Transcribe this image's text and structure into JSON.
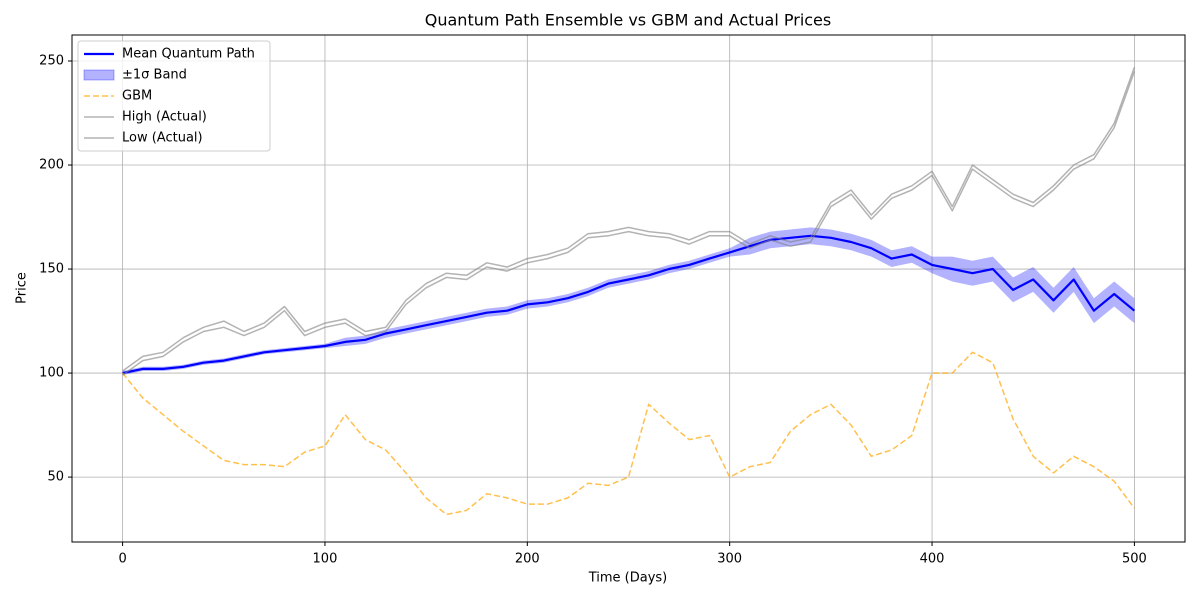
{
  "chart_data": {
    "type": "line",
    "title": "Quantum Path Ensemble vs GBM and Actual Prices",
    "xlabel": "Time (Days)",
    "ylabel": "Price",
    "x": [
      0,
      10,
      20,
      30,
      40,
      50,
      60,
      70,
      80,
      90,
      100,
      110,
      120,
      130,
      140,
      150,
      160,
      170,
      180,
      190,
      200,
      210,
      220,
      230,
      240,
      250,
      260,
      270,
      280,
      290,
      300,
      310,
      320,
      330,
      340,
      350,
      360,
      370,
      380,
      390,
      400,
      410,
      420,
      430,
      440,
      450,
      460,
      470,
      480,
      490,
      500
    ],
    "series": [
      {
        "name": "Mean Quantum Path",
        "color": "#0000ff",
        "opacity": 1,
        "width": 2.2,
        "values": [
          100,
          102,
          102,
          103,
          105,
          106,
          108,
          110,
          111,
          112,
          113,
          115,
          116,
          119,
          121,
          123,
          125,
          127,
          129,
          130,
          133,
          134,
          136,
          139,
          143,
          145,
          147,
          150,
          152,
          155,
          158,
          161,
          164,
          165,
          166,
          165,
          163,
          160,
          155,
          157,
          152,
          150,
          148,
          150,
          140,
          145,
          135,
          145,
          130,
          138,
          130
        ]
      },
      {
        "name": "±1σ Band",
        "color": "#0000ff",
        "opacity": 0.3,
        "upper": [
          101,
          103,
          103,
          104,
          106,
          107,
          109,
          111,
          112,
          113,
          114,
          117,
          118,
          121,
          123,
          125,
          127,
          129,
          131,
          132,
          135,
          136,
          138,
          141,
          145,
          147,
          149,
          152,
          154,
          157,
          160,
          165,
          168,
          169,
          170,
          169,
          167,
          164,
          159,
          161,
          156,
          156,
          154,
          156,
          146,
          151,
          141,
          151,
          136,
          144,
          136
        ],
        "lower": [
          99,
          101,
          101,
          102,
          104,
          105,
          107,
          109,
          110,
          111,
          112,
          113,
          114,
          117,
          119,
          121,
          123,
          125,
          127,
          128,
          131,
          132,
          134,
          137,
          141,
          143,
          145,
          148,
          150,
          153,
          156,
          157,
          160,
          161,
          162,
          161,
          159,
          156,
          151,
          153,
          148,
          144,
          142,
          144,
          134,
          139,
          129,
          139,
          124,
          132,
          124
        ]
      },
      {
        "name": "GBM",
        "color": "#ffa500",
        "opacity": 0.7,
        "width": 1.5,
        "dash": true,
        "values": [
          100,
          88,
          80,
          72,
          65,
          58,
          56,
          56,
          55,
          62,
          65,
          80,
          68,
          63,
          52,
          40,
          32,
          34,
          42,
          40,
          37,
          37,
          40,
          47,
          46,
          50,
          85,
          76,
          68,
          70,
          50,
          55,
          57,
          72,
          80,
          85,
          75,
          60,
          63,
          70,
          100,
          100,
          110,
          105,
          78,
          60,
          52,
          60,
          55,
          48,
          35
        ]
      },
      {
        "name": "High (Actual)",
        "color": "#808080",
        "opacity": 0.6,
        "width": 1.5,
        "values": [
          101,
          108,
          110,
          117,
          122,
          125,
          120,
          124,
          132,
          120,
          124,
          126,
          120,
          122,
          135,
          143,
          148,
          147,
          153,
          151,
          155,
          157,
          160,
          167,
          168,
          170,
          168,
          167,
          164,
          168,
          168,
          162,
          166,
          163,
          165,
          182,
          188,
          176,
          186,
          190,
          197,
          180,
          200,
          193,
          186,
          182,
          190,
          200,
          205,
          220,
          247
        ]
      },
      {
        "name": "Low (Actual)",
        "color": "#808080",
        "opacity": 0.6,
        "width": 1.5,
        "values": [
          99,
          106,
          108,
          115,
          120,
          122,
          118,
          122,
          130,
          118,
          122,
          124,
          118,
          120,
          133,
          141,
          146,
          145,
          151,
          149,
          153,
          155,
          158,
          165,
          166,
          168,
          166,
          165,
          162,
          166,
          166,
          160,
          164,
          161,
          163,
          180,
          186,
          174,
          184,
          188,
          195,
          178,
          198,
          191,
          184,
          180,
          188,
          198,
          203,
          218,
          245
        ]
      }
    ],
    "xlim": [
      -25,
      525
    ],
    "ylim": [
      18.8,
      262.5
    ],
    "xticks": [
      0,
      100,
      200,
      300,
      400,
      500
    ],
    "yticks": [
      50,
      100,
      150,
      200,
      250
    ],
    "grid": true,
    "legend": "upper left"
  }
}
